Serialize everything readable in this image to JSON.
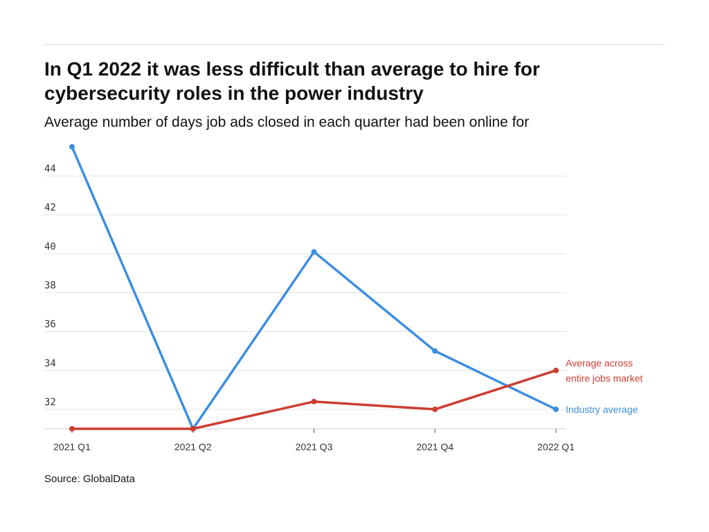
{
  "title": "In Q1 2022 it was less difficult than average to hire for cybersecurity roles in the power industry",
  "subtitle": "Average number of days job ads closed in each quarter had been online for",
  "source": "Source: GlobalData",
  "colors": {
    "industry": "#3c8ee0",
    "market": "#cc3d33",
    "grid": "#e3e3e3",
    "axis": "#cccccc"
  },
  "chart_data": {
    "type": "line",
    "categories": [
      "2021 Q1",
      "2021 Q2",
      "2021 Q3",
      "2021 Q4",
      "2022 Q1"
    ],
    "y_ticks": [
      32,
      34,
      36,
      38,
      40,
      42,
      44
    ],
    "ylim": [
      31,
      45.5
    ],
    "grid": true,
    "legend": "inline labels at line ends (right)",
    "series": [
      {
        "key": "industry",
        "label_lines": [
          "Industry average"
        ],
        "values": [
          45.5,
          31.0,
          40.1,
          35.0,
          32.0
        ]
      },
      {
        "key": "market",
        "label_lines": [
          "Average across",
          "entire jobs market"
        ],
        "values": [
          31.0,
          31.0,
          32.4,
          32.0,
          34.0
        ]
      }
    ]
  }
}
